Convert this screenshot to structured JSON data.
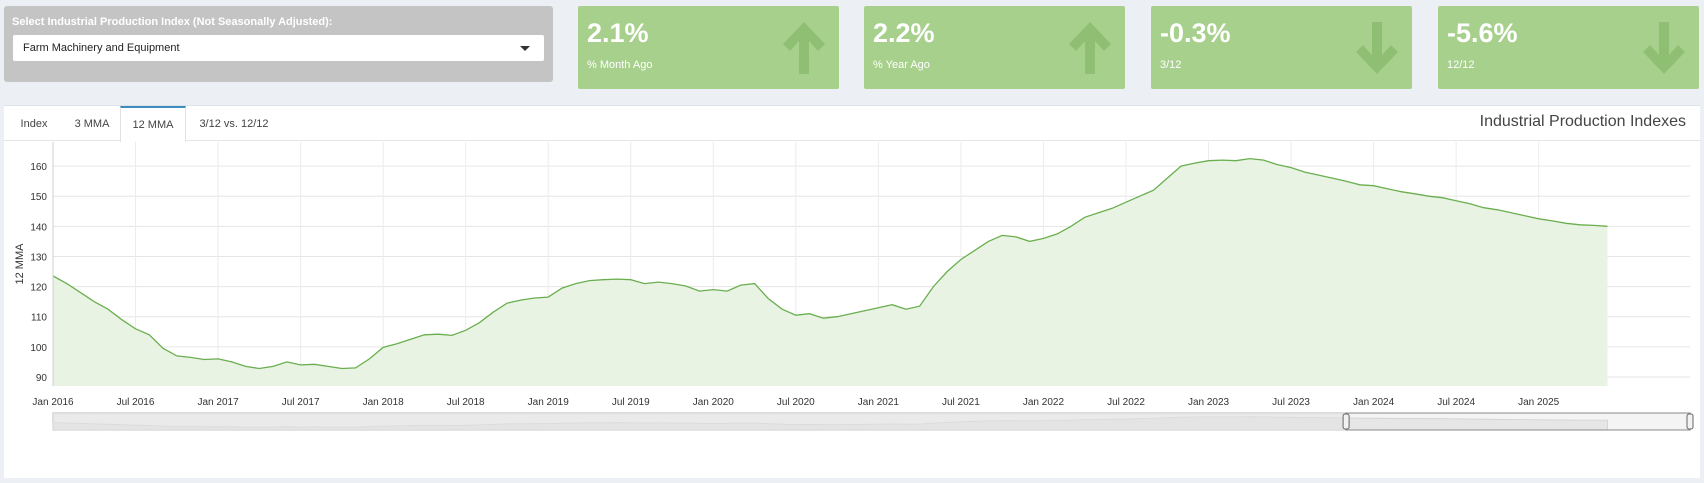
{
  "selector": {
    "label": "Select Industrial Production Index (Not Seasonally Adjusted):",
    "value": "Farm Machinery and Equipment"
  },
  "kpis": [
    {
      "value": "2.1%",
      "label": "% Month Ago",
      "direction": "up",
      "icon": "arrow-up-icon"
    },
    {
      "value": "2.2%",
      "label": "% Year Ago",
      "direction": "up",
      "icon": "arrow-up-icon"
    },
    {
      "value": "-0.3%",
      "label": "3/12",
      "direction": "down",
      "icon": "arrow-down-icon"
    },
    {
      "value": "-5.6%",
      "label": "12/12",
      "direction": "down",
      "icon": "arrow-down-icon"
    }
  ],
  "tabs": [
    {
      "label": "Index",
      "active": false
    },
    {
      "label": "3 MMA",
      "active": false
    },
    {
      "label": "12 MMA",
      "active": true
    },
    {
      "label": "3/12 vs. 12/12",
      "active": false
    }
  ],
  "card_title": "Industrial Production Indexes",
  "colors": {
    "kpi_bg": "#a8d08d",
    "kpi_arrow": "#8fbf73",
    "line": "#6aaf4f",
    "area": "#e9f3e3",
    "tab_active": "#3c8dbc"
  },
  "chart_data": {
    "type": "area",
    "title": "Industrial Production Indexes",
    "ylabel": "12 MMA",
    "xlabel": "",
    "ylim": [
      87,
      168
    ],
    "yticks": [
      90,
      100,
      110,
      120,
      130,
      140,
      150,
      160
    ],
    "xlim": [
      "2016-01",
      "2025-12"
    ],
    "xtick_labels": [
      "Jan 2016",
      "Jul 2016",
      "Jan 2017",
      "Jul 2017",
      "Jan 2018",
      "Jul 2018",
      "Jan 2019",
      "Jul 2019",
      "Jan 2020",
      "Jul 2020",
      "Jan 2021",
      "Jul 2021",
      "Jan 2022",
      "Jul 2022",
      "Jan 2023",
      "Jul 2023",
      "Jan 2024",
      "Jul 2024",
      "Jan 2025"
    ],
    "grid": true,
    "has_range_selector": true,
    "series": [
      {
        "name": "12 MMA",
        "start": "2016-01",
        "values": [
          123.5,
          121.0,
          118.0,
          115.0,
          112.5,
          109.0,
          106.0,
          104.0,
          99.5,
          97.0,
          96.5,
          95.8,
          96.0,
          95.0,
          93.5,
          92.8,
          93.5,
          95.0,
          94.0,
          94.2,
          93.5,
          92.8,
          93.0,
          96.0,
          99.8,
          101.0,
          102.5,
          104.0,
          104.2,
          103.8,
          105.5,
          108.0,
          111.5,
          114.5,
          115.5,
          116.2,
          116.5,
          119.5,
          121.0,
          122.0,
          122.3,
          122.5,
          122.3,
          121.0,
          121.5,
          121.0,
          120.2,
          118.5,
          119.0,
          118.5,
          120.5,
          121.0,
          116.0,
          112.5,
          110.5,
          111.0,
          109.5,
          110.0,
          111.0,
          112.0,
          113.0,
          114.0,
          112.5,
          113.5,
          120.0,
          125.0,
          129.0,
          132.0,
          135.0,
          137.0,
          136.5,
          135.0,
          136.0,
          137.5,
          140.0,
          143.0,
          144.5,
          146.0,
          148.0,
          150.0,
          152.0,
          156.0,
          160.0,
          161.0,
          161.8,
          162.0,
          161.8,
          162.5,
          162.0,
          160.5,
          159.5,
          158.0,
          157.0,
          156.0,
          155.0,
          153.8,
          153.5,
          152.5,
          151.5,
          150.8,
          150.0,
          149.5,
          148.5,
          147.5,
          146.2,
          145.5,
          144.5,
          143.5,
          142.5,
          141.8,
          141.0,
          140.5,
          140.3,
          140.0
        ]
      }
    ],
    "range_selector_window": [
      "2023-11",
      "2025-12"
    ]
  }
}
